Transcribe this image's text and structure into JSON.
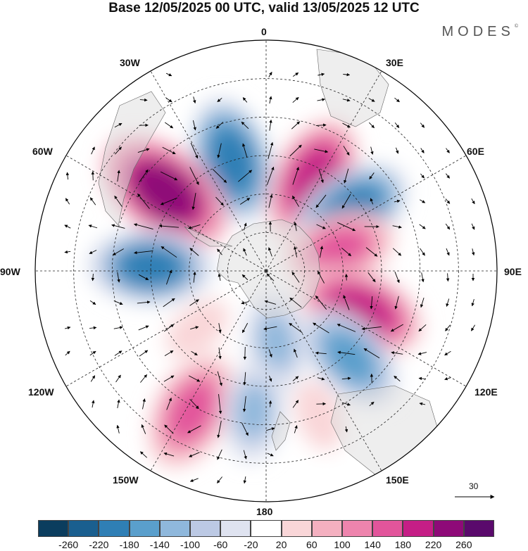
{
  "title": "Base 12/05/2025 00 UTC, valid 13/05/2025 12 UTC",
  "brand": "MODES",
  "brand_mark": "©",
  "longitudes": {
    "lon_0": "0",
    "lon_30e": "30E",
    "lon_60e": "60E",
    "lon_90e": "90E",
    "lon_120e": "120E",
    "lon_150e": "150E",
    "lon_180": "180",
    "lon_150w": "150W",
    "lon_120w": "120W",
    "lon_90w": "90W",
    "lon_60w": "60W",
    "lon_30w": "30W"
  },
  "vector_scale": "30",
  "colorbar": {
    "ticks": [
      "-260",
      "-220",
      "-180",
      "-140",
      "-100",
      "-60",
      "-20",
      "20",
      "60",
      "100",
      "140",
      "180",
      "220",
      "260"
    ],
    "colors": [
      "#0b3d5e",
      "#1a5f8f",
      "#2f7fb5",
      "#5a9fcc",
      "#8fb8dc",
      "#bcc9e4",
      "#dfe3f0",
      "#ffffff",
      "#f9d6d8",
      "#f4b0c0",
      "#ee84ad",
      "#e2559b",
      "#c51e86",
      "#8e0a78",
      "#5a0a6c"
    ]
  },
  "anomaly_centers": [
    {
      "lon": -17,
      "colat_deg": 45,
      "value": -200
    },
    {
      "lon": 27,
      "colat_deg": 40,
      "value": 210
    },
    {
      "lon": -52,
      "colat_deg": 50,
      "value": 250
    },
    {
      "lon": 55,
      "colat_deg": 40,
      "value": -200
    },
    {
      "lon": 73,
      "colat_deg": 30,
      "value": 150
    },
    {
      "lon": -88,
      "colat_deg": 45,
      "value": -190
    },
    {
      "lon": 113,
      "colat_deg": 40,
      "value": 210
    },
    {
      "lon": 136,
      "colat_deg": 47,
      "value": -160
    },
    {
      "lon": 172,
      "colat_deg": 28,
      "value": -110
    },
    {
      "lon": -152,
      "colat_deg": 62,
      "value": 180
    },
    {
      "lon": -175,
      "colat_deg": 55,
      "value": -110
    },
    {
      "lon": -130,
      "colat_deg": 35,
      "value": 60
    },
    {
      "lon": 160,
      "colat_deg": 60,
      "value": 60
    }
  ]
}
